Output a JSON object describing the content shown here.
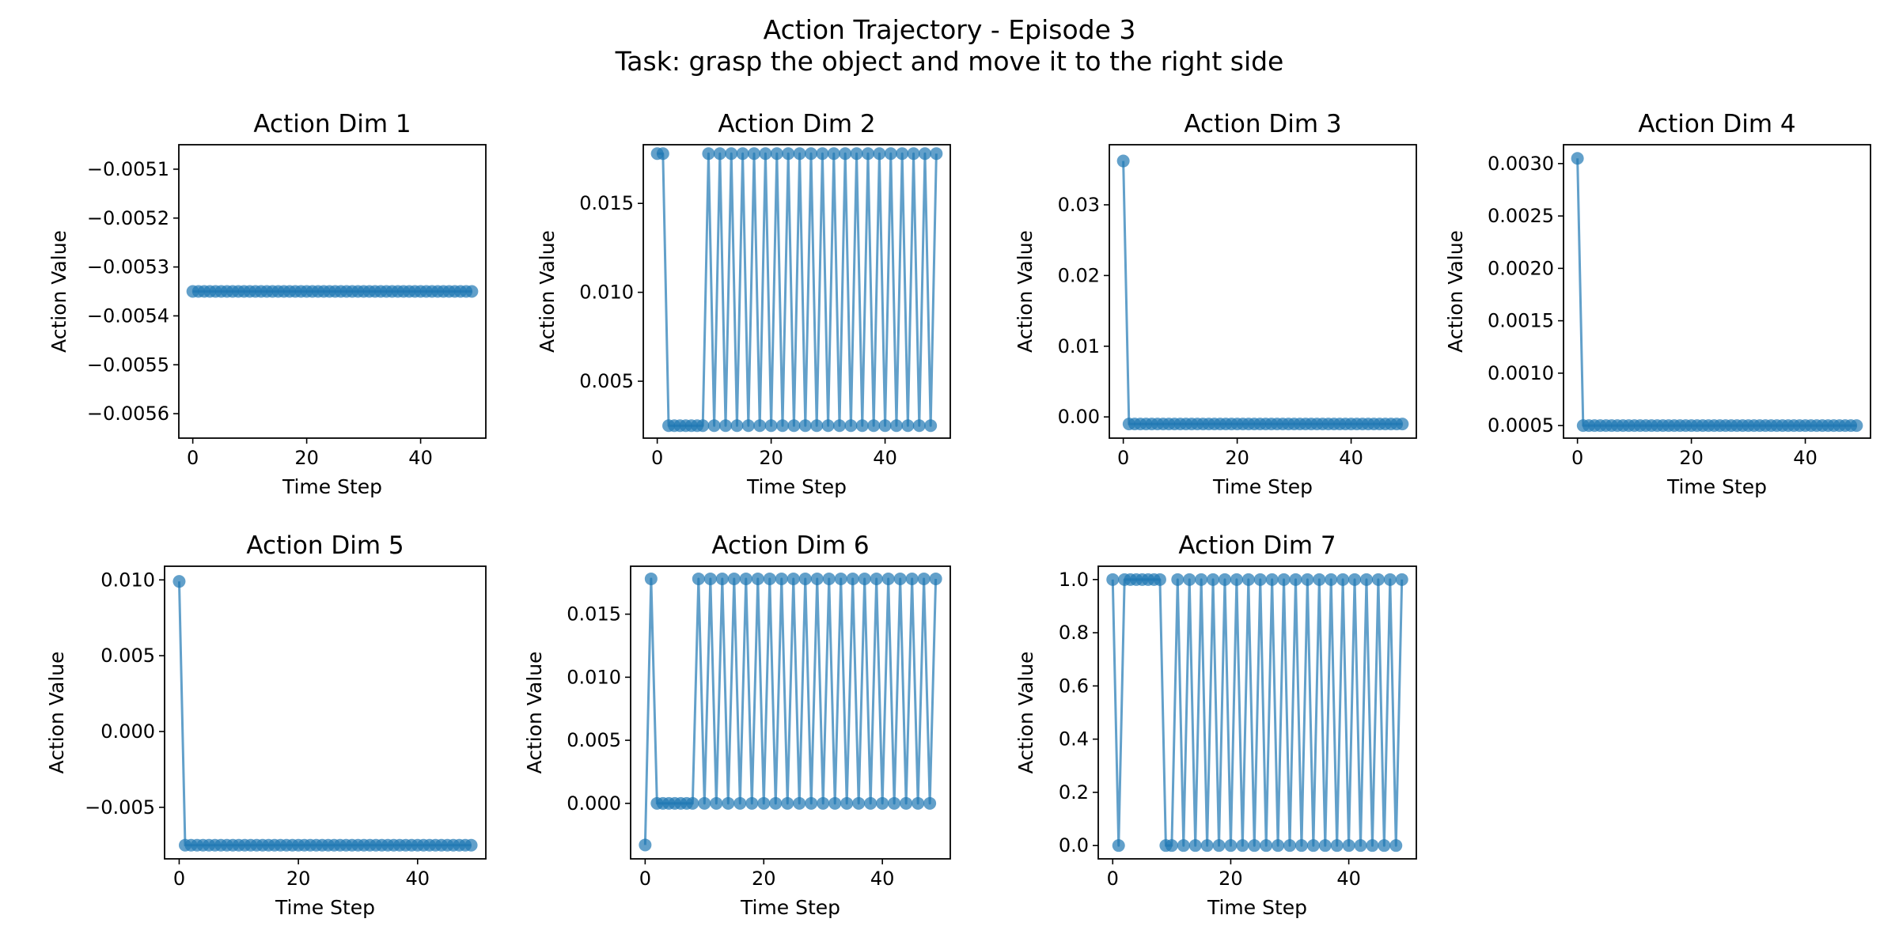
{
  "figure": {
    "title": "Action Trajectory - Episode 3",
    "subtitle": "Task: grasp the object and move it to the right side"
  },
  "colors": {
    "series": "#1f77b4"
  },
  "chart_data": [
    {
      "type": "line",
      "title": "Action Dim 1",
      "xlabel": "Time Step",
      "ylabel": "Action Value",
      "xlim": [
        -2.45,
        51.45
      ],
      "ylim": [
        -0.00565,
        -0.00505
      ],
      "xticks": [
        0,
        20,
        40
      ],
      "xtick_labels": [
        "0",
        "20",
        "40"
      ],
      "yticks": [
        -0.0051,
        -0.0052,
        -0.0053,
        -0.0054,
        -0.0055,
        -0.0056
      ],
      "ytick_labels": [
        "−0.0051",
        "−0.0052",
        "−0.0053",
        "−0.0054",
        "−0.0055",
        "−0.0056"
      ],
      "series": [
        {
          "pattern": "constant",
          "n": 50,
          "value": -0.00535
        }
      ]
    },
    {
      "type": "line",
      "title": "Action Dim 2",
      "xlabel": "Time Step",
      "ylabel": "Action Value",
      "xlim": [
        -2.45,
        51.45
      ],
      "ylim": [
        0.0018,
        0.0183
      ],
      "xticks": [
        0,
        20,
        40
      ],
      "xtick_labels": [
        "0",
        "20",
        "40"
      ],
      "yticks": [
        0.005,
        0.01,
        0.015
      ],
      "ytick_labels": [
        "0.005",
        "0.010",
        "0.015"
      ],
      "series": [
        {
          "pattern": "alternating",
          "n": 50,
          "high": 0.0178,
          "low": 0.0025,
          "values_0_9": [
            0.0178,
            0.0178,
            0.0025,
            0.0025,
            0.0025,
            0.0025,
            0.0025,
            0.0025,
            0.0025,
            0.0178
          ]
        }
      ]
    },
    {
      "type": "line",
      "title": "Action Dim 3",
      "xlabel": "Time Step",
      "ylabel": "Action Value",
      "xlim": [
        -2.45,
        51.45
      ],
      "ylim": [
        -0.003,
        0.0385
      ],
      "xticks": [
        0,
        20,
        40
      ],
      "xtick_labels": [
        "0",
        "20",
        "40"
      ],
      "yticks": [
        0.0,
        0.01,
        0.02,
        0.03
      ],
      "ytick_labels": [
        "0.00",
        "0.01",
        "0.02",
        "0.03"
      ],
      "series": [
        {
          "pattern": "first_then_constant",
          "n": 50,
          "first": 0.0362,
          "value": -0.001
        }
      ]
    },
    {
      "type": "line",
      "title": "Action Dim 4",
      "xlabel": "Time Step",
      "ylabel": "Action Value",
      "xlim": [
        -2.45,
        51.45
      ],
      "ylim": [
        0.00038,
        0.00318
      ],
      "xticks": [
        0,
        20,
        40
      ],
      "xtick_labels": [
        "0",
        "20",
        "40"
      ],
      "yticks": [
        0.0005,
        0.001,
        0.0015,
        0.002,
        0.0025,
        0.003
      ],
      "ytick_labels": [
        "0.0005",
        "0.0010",
        "0.0015",
        "0.0020",
        "0.0025",
        "0.0030"
      ],
      "series": [
        {
          "pattern": "first_then_constant",
          "n": 50,
          "first": 0.00305,
          "value": 0.0005
        }
      ]
    },
    {
      "type": "line",
      "title": "Action Dim 5",
      "xlabel": "Time Step",
      "ylabel": "Action Value",
      "xlim": [
        -2.45,
        51.45
      ],
      "ylim": [
        -0.0084,
        0.0109
      ],
      "xticks": [
        0,
        20,
        40
      ],
      "xtick_labels": [
        "0",
        "20",
        "40"
      ],
      "yticks": [
        0.01,
        0.005,
        0.0,
        -0.005
      ],
      "ytick_labels": [
        "0.010",
        "0.005",
        "0.000",
        "−0.005"
      ],
      "series": [
        {
          "pattern": "first_then_constant",
          "n": 50,
          "first": 0.0099,
          "value": -0.0075
        }
      ]
    },
    {
      "type": "line",
      "title": "Action Dim 6",
      "xlabel": "Time Step",
      "ylabel": "Action Value",
      "xlim": [
        -2.45,
        51.45
      ],
      "ylim": [
        -0.0044,
        0.0188
      ],
      "xticks": [
        0,
        20,
        40
      ],
      "xtick_labels": [
        "0",
        "20",
        "40"
      ],
      "yticks": [
        0.0,
        0.005,
        0.01,
        0.015
      ],
      "ytick_labels": [
        "0.000",
        "0.005",
        "0.010",
        "0.015"
      ],
      "series": [
        {
          "pattern": "alternating",
          "n": 50,
          "high": 0.0178,
          "low": 0.0,
          "values_0_9": [
            -0.0033,
            0.0178,
            0.0,
            0.0,
            0.0,
            0.0,
            0.0,
            0.0,
            0.0,
            0.0178
          ]
        }
      ]
    },
    {
      "type": "line",
      "title": "Action Dim 7",
      "xlabel": "Time Step",
      "ylabel": "Action Value",
      "xlim": [
        -2.45,
        51.45
      ],
      "ylim": [
        -0.05,
        1.05
      ],
      "xticks": [
        0,
        20,
        40
      ],
      "xtick_labels": [
        "0",
        "20",
        "40"
      ],
      "yticks": [
        0.0,
        0.2,
        0.4,
        0.6,
        0.8,
        1.0
      ],
      "ytick_labels": [
        "0.0",
        "0.2",
        "0.4",
        "0.6",
        "0.8",
        "1.0"
      ],
      "series": [
        {
          "pattern": "alternating",
          "n": 50,
          "high": 1.0,
          "low": 0.0,
          "values_0_9": [
            1.0,
            0.0,
            1.0,
            1.0,
            1.0,
            1.0,
            1.0,
            1.0,
            1.0,
            0.0
          ]
        }
      ]
    }
  ]
}
